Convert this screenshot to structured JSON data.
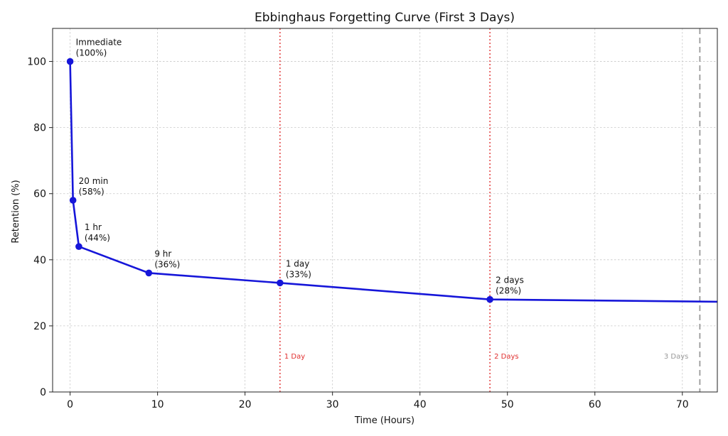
{
  "chart_data": {
    "type": "line",
    "title": "Ebbinghaus Forgetting Curve (First 3 Days)",
    "xlabel": "Time (Hours)",
    "ylabel": "Retention (%)",
    "xlim": [
      -2,
      74
    ],
    "ylim": [
      0,
      110
    ],
    "xticks": [
      0,
      10,
      20,
      30,
      40,
      50,
      60,
      70
    ],
    "yticks": [
      0,
      20,
      40,
      60,
      80,
      100
    ],
    "grid": true,
    "series": [
      {
        "name": "Retention",
        "color": "#1616d9",
        "x": [
          0,
          0.33,
          1,
          9,
          24,
          48,
          74
        ],
        "y": [
          100,
          58,
          44,
          36,
          33,
          28,
          27.3
        ]
      }
    ],
    "points": [
      {
        "x": 0,
        "y": 100,
        "label_line1": "Immediate",
        "label_line2": "(100%)"
      },
      {
        "x": 0.33,
        "y": 58,
        "label_line1": "20 min",
        "label_line2": "(58%)"
      },
      {
        "x": 1,
        "y": 44,
        "label_line1": "1 hr",
        "label_line2": "(44%)"
      },
      {
        "x": 9,
        "y": 36,
        "label_line1": "9 hr",
        "label_line2": "(36%)"
      },
      {
        "x": 24,
        "y": 33,
        "label_line1": "1 day",
        "label_line2": "(33%)"
      },
      {
        "x": 48,
        "y": 28,
        "label_line1": "2 days",
        "label_line2": "(28%)"
      }
    ],
    "reference_lines": [
      {
        "x": 24,
        "label": "1 Day",
        "color": "#e03030",
        "style": "dotted"
      },
      {
        "x": 48,
        "label": "2 Days",
        "color": "#e03030",
        "style": "dotted"
      },
      {
        "x": 72,
        "label": "3 Days",
        "color": "#999999",
        "style": "dashed"
      }
    ]
  }
}
